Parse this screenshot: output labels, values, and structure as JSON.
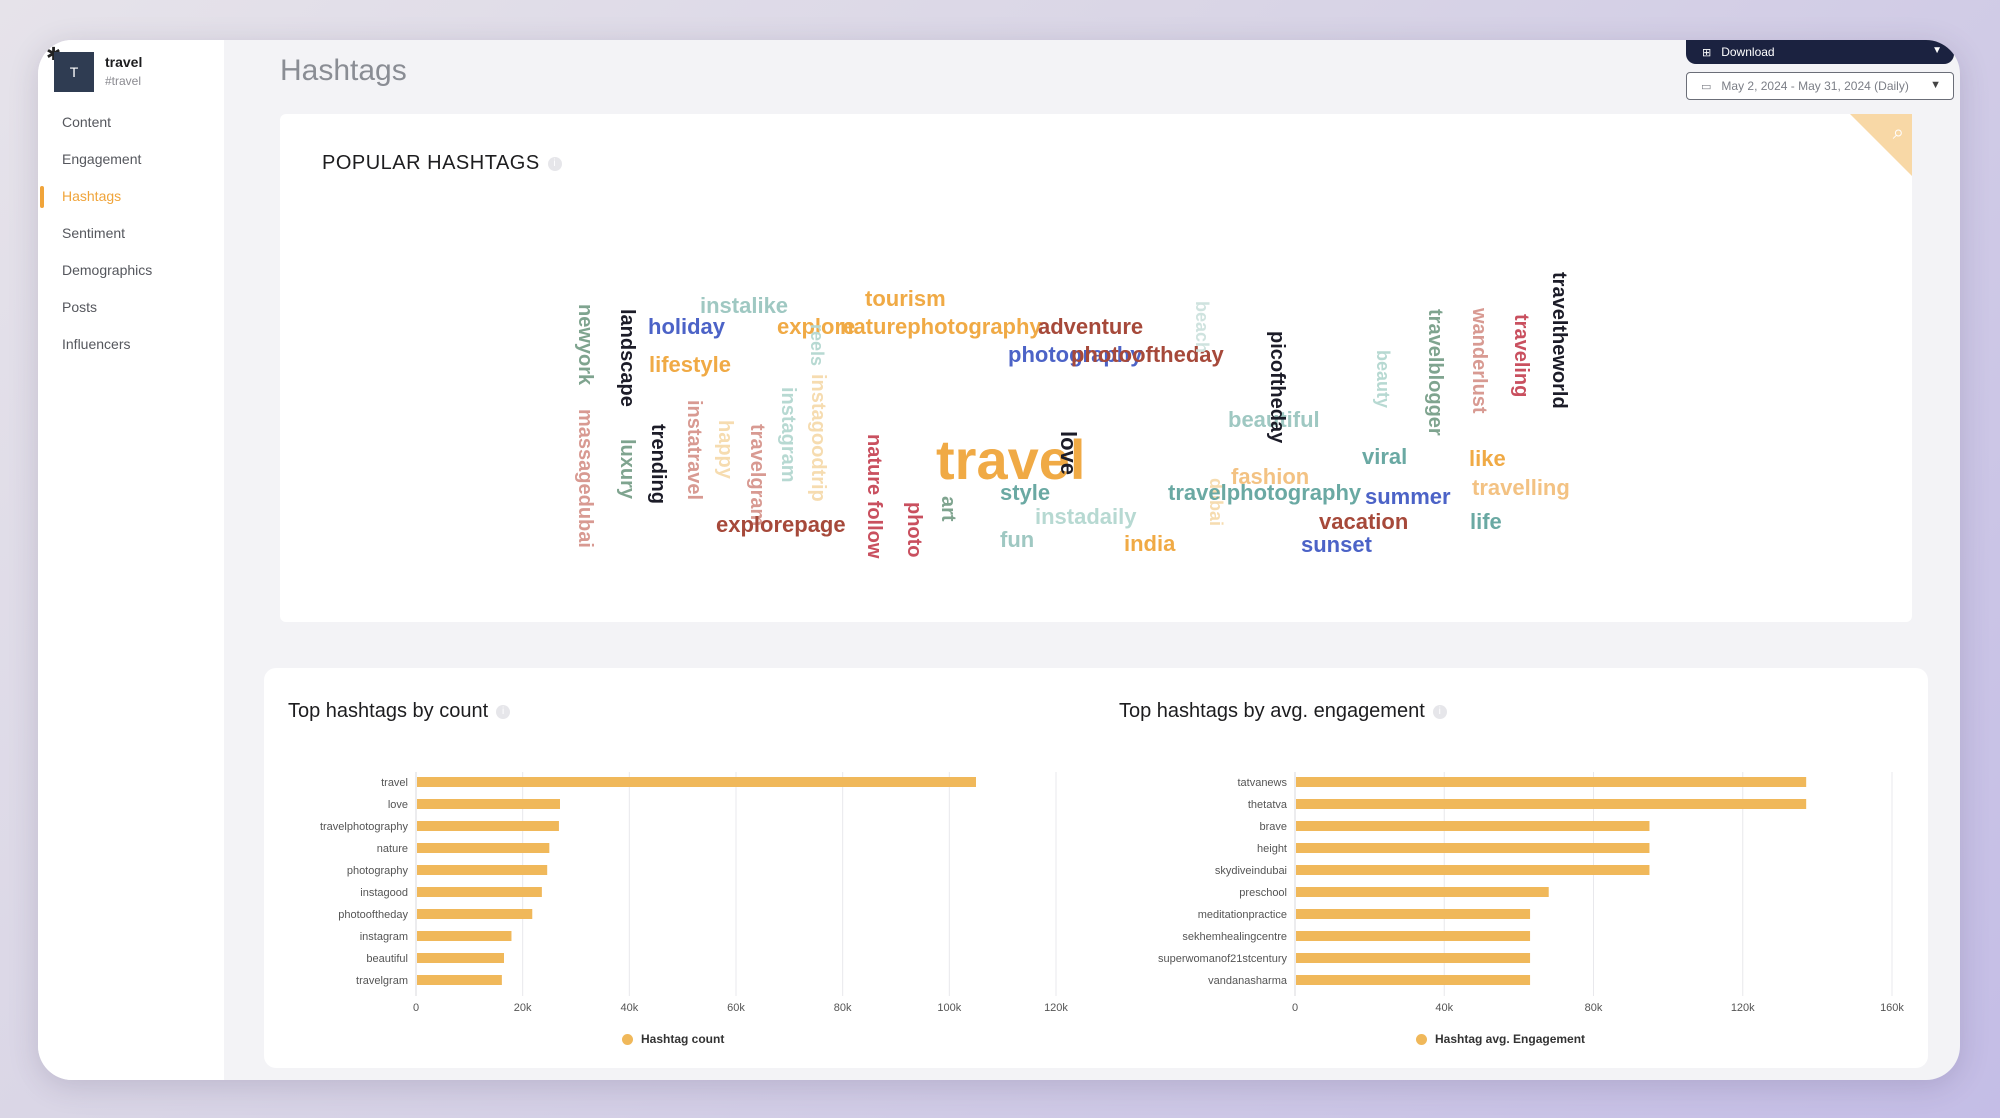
{
  "account": {
    "initial": "T",
    "name": "travel",
    "handle": "#travel"
  },
  "nav": [
    {
      "label": "Content"
    },
    {
      "label": "Engagement"
    },
    {
      "label": "Hashtags",
      "active": true
    },
    {
      "label": "Sentiment"
    },
    {
      "label": "Demographics"
    },
    {
      "label": "Posts"
    },
    {
      "label": "Influencers"
    }
  ],
  "page": {
    "title": "Hashtags"
  },
  "toolbar": {
    "download_label": "Download",
    "date_range": "May 2, 2024 - May 31, 2024 (Daily)"
  },
  "popular": {
    "title": "POPULAR HASHTAGS",
    "words": [
      {
        "text": "newyork",
        "color": "#7fa48f",
        "size": 20,
        "rot": 90
      },
      {
        "text": "massagedubai",
        "color": "#d89a92",
        "size": 20,
        "rot": 90
      },
      {
        "text": "landscape",
        "color": "#1c1c28",
        "size": 20,
        "rot": 90
      },
      {
        "text": "luxury",
        "color": "#7fa48f",
        "size": 20,
        "rot": 90
      },
      {
        "text": "trending",
        "color": "#1c1c28",
        "size": 20,
        "rot": 90
      },
      {
        "text": "instalike",
        "color": "#9fc8c2",
        "size": 22,
        "rot": 0
      },
      {
        "text": "holiday",
        "color": "#4c63c7",
        "size": 22,
        "rot": 0
      },
      {
        "text": "explore",
        "color": "#f0aa45",
        "size": 22,
        "rot": 0
      },
      {
        "text": "lifestyle",
        "color": "#f0aa45",
        "size": 22,
        "rot": 0
      },
      {
        "text": "instatravel",
        "color": "#d89a92",
        "size": 20,
        "rot": 90
      },
      {
        "text": "happy",
        "color": "#f6dcb0",
        "size": 20,
        "rot": 90
      },
      {
        "text": "travelgram",
        "color": "#d89a92",
        "size": 20,
        "rot": 90
      },
      {
        "text": "instagram",
        "color": "#b7d9d2",
        "size": 20,
        "rot": 90
      },
      {
        "text": "reels",
        "color": "#b7d9d2",
        "size": 18,
        "rot": 90
      },
      {
        "text": "instagoodtrip",
        "color": "#f6dcb0",
        "size": 20,
        "rot": 90
      },
      {
        "text": "explorepage",
        "color": "#a6493a",
        "size": 22,
        "rot": 0
      },
      {
        "text": "tourism",
        "color": "#f0aa45",
        "size": 22,
        "rot": 0
      },
      {
        "text": "naturephotography",
        "color": "#f0aa45",
        "size": 22,
        "rot": 0
      },
      {
        "text": "adventure",
        "color": "#a6493a",
        "size": 22,
        "rot": 0
      },
      {
        "text": "photography",
        "color": "#4c63c7",
        "size": 22,
        "rot": 0
      },
      {
        "text": "photooftheday",
        "color": "#a6493a",
        "size": 22,
        "rot": 0
      },
      {
        "text": "nature follow",
        "color": "#c9505f",
        "size": 20,
        "rot": 90
      },
      {
        "text": "photo",
        "color": "#c9505f",
        "size": 20,
        "rot": 90
      },
      {
        "text": "travel",
        "color": "#f0aa45",
        "size": 56,
        "rot": 0
      },
      {
        "text": "art",
        "color": "#7fa48f",
        "size": 20,
        "rot": 90
      },
      {
        "text": "style",
        "color": "#6aa9a3",
        "size": 22,
        "rot": 0
      },
      {
        "text": "fun",
        "color": "#9fc8c2",
        "size": 22,
        "rot": 0
      },
      {
        "text": "instadaily",
        "color": "#b7d9d2",
        "size": 22,
        "rot": 0
      },
      {
        "text": "india",
        "color": "#f0aa45",
        "size": 22,
        "rot": 0
      },
      {
        "text": "love",
        "color": "#1c1c28",
        "size": 22,
        "rot": 90
      },
      {
        "text": "dubai",
        "color": "#f6dcb0",
        "size": 18,
        "rot": 90
      },
      {
        "text": "beach",
        "color": "#cfe3df",
        "size": 18,
        "rot": 90
      },
      {
        "text": "beautiful",
        "color": "#9fc8c2",
        "size": 22,
        "rot": 0
      },
      {
        "text": "fashion",
        "color": "#f3c283",
        "size": 22,
        "rot": 0
      },
      {
        "text": "travelphotography",
        "color": "#6aa9a3",
        "size": 22,
        "rot": 0
      },
      {
        "text": "vacation",
        "color": "#a6493a",
        "size": 22,
        "rot": 0
      },
      {
        "text": "sunset",
        "color": "#4c63c7",
        "size": 22,
        "rot": 0
      },
      {
        "text": "picoftheday",
        "color": "#1c1c28",
        "size": 20,
        "rot": 90
      },
      {
        "text": "beauty",
        "color": "#b7d9d2",
        "size": 18,
        "rot": 90
      },
      {
        "text": "viral",
        "color": "#6aa9a3",
        "size": 22,
        "rot": 0
      },
      {
        "text": "summer",
        "color": "#4c63c7",
        "size": 22,
        "rot": 0
      },
      {
        "text": "travelblogger",
        "color": "#7fa48f",
        "size": 20,
        "rot": 90
      },
      {
        "text": "wanderlust",
        "color": "#d89a92",
        "size": 20,
        "rot": 90
      },
      {
        "text": "like",
        "color": "#f0aa45",
        "size": 22,
        "rot": 0
      },
      {
        "text": "traveling",
        "color": "#c9505f",
        "size": 20,
        "rot": 90
      },
      {
        "text": "travelling",
        "color": "#f3c283",
        "size": 22,
        "rot": 0
      },
      {
        "text": "life",
        "color": "#6aa9a3",
        "size": 22,
        "rot": 0
      },
      {
        "text": "traveltheworld",
        "color": "#1c1c28",
        "size": 20,
        "rot": 90
      }
    ]
  },
  "chart_data": [
    {
      "type": "bar",
      "title": "Top hashtags by count",
      "orientation": "horizontal",
      "categories": [
        "travel",
        "love",
        "travelphotography",
        "nature",
        "photography",
        "instagood",
        "photooftheday",
        "instagram",
        "beautiful",
        "travelgram"
      ],
      "series": [
        {
          "name": "Hashtag count",
          "values": [
            105000,
            27000,
            26800,
            25000,
            24600,
            23600,
            21800,
            17900,
            16500,
            16100
          ]
        }
      ],
      "xlim": [
        0,
        120000
      ],
      "ticks": [
        "0",
        "20k",
        "40k",
        "60k",
        "80k",
        "100k",
        "120k"
      ],
      "tick_values": [
        0,
        20000,
        40000,
        60000,
        80000,
        100000,
        120000
      ],
      "color": "#f0b85a",
      "legend": "bottom"
    },
    {
      "type": "bar",
      "title": "Top hashtags by avg. engagement",
      "orientation": "horizontal",
      "categories": [
        "tatvanews",
        "thetatva",
        "brave",
        "height",
        "skydiveindubai",
        "preschool",
        "meditationpractice",
        "sekhemhealingcentre",
        "superwomanof21stcentury",
        "vandanasharma"
      ],
      "series": [
        {
          "name": "Hashtag avg. Engagement",
          "values": [
            137000,
            137000,
            95000,
            95000,
            95000,
            68000,
            63000,
            63000,
            63000,
            63000
          ]
        }
      ],
      "xlim": [
        0,
        160000
      ],
      "ticks": [
        "0",
        "40k",
        "80k",
        "120k",
        "160k"
      ],
      "tick_values": [
        0,
        40000,
        80000,
        120000,
        160000
      ],
      "color": "#f0b85a",
      "legend": "bottom"
    }
  ]
}
